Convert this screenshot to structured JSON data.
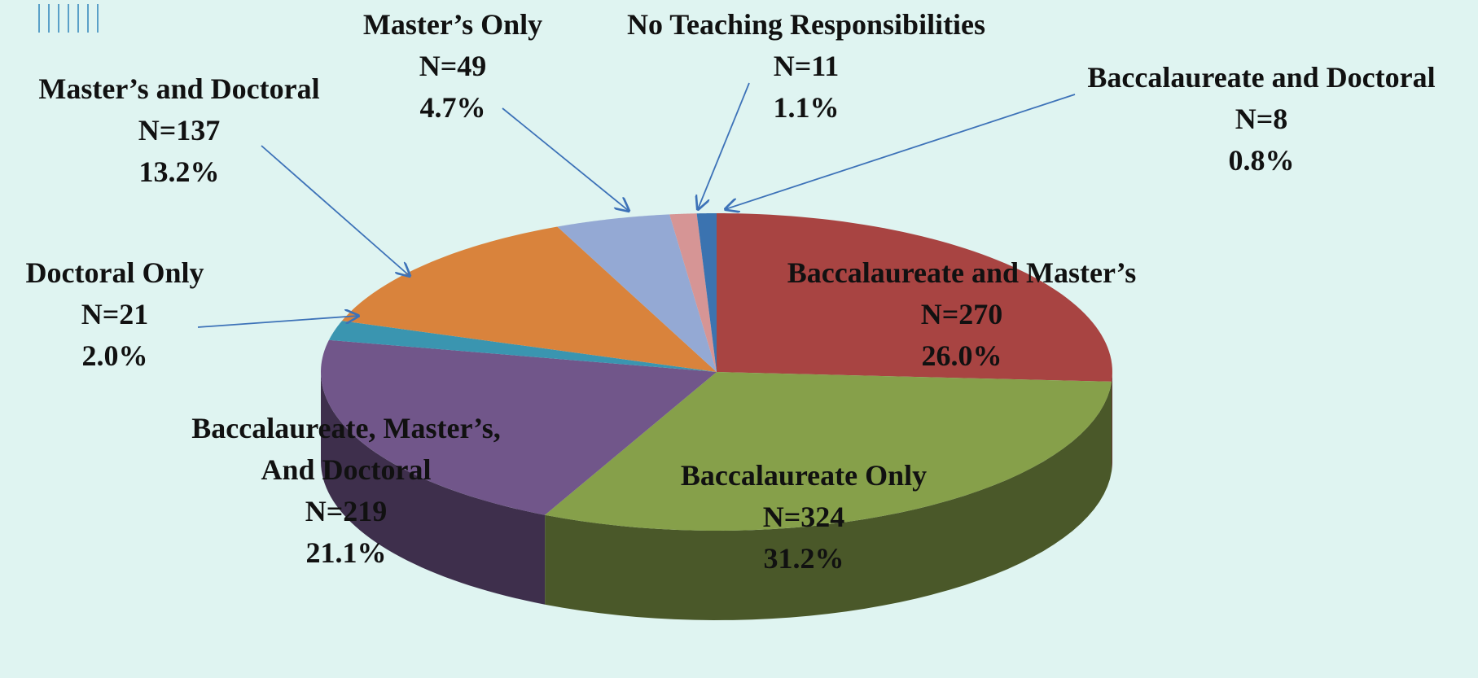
{
  "chart_data": {
    "type": "pie3d",
    "categories": [
      "Baccalaureate and Master’s",
      "Baccalaureate Only",
      "Baccalaureate, Master’s, And Doctoral",
      "Doctoral Only",
      "Master’s and Doctoral",
      "Master’s Only",
      "No Teaching Responsibilities",
      "Baccalaureate and Doctoral"
    ],
    "values": [
      26.0,
      31.2,
      21.1,
      2.0,
      13.2,
      4.7,
      1.1,
      0.8
    ],
    "value_labels": [
      "26.0%",
      "31.2%",
      "21.1%",
      "2.0%",
      "13.2%",
      "4.7%",
      "1.1%",
      "0.8%"
    ],
    "counts": [
      270,
      324,
      219,
      21,
      137,
      49,
      11,
      8
    ],
    "count_labels": [
      "N=270",
      "N=324",
      "N=219",
      "N=21",
      "N=137",
      "N=49",
      "N=11",
      "N=8"
    ],
    "colors": [
      "#a84442",
      "#86a04a",
      "#71568a",
      "#3a95b0",
      "#d9833c",
      "#94a9d4",
      "#d69595",
      "#3b73b0"
    ]
  }
}
